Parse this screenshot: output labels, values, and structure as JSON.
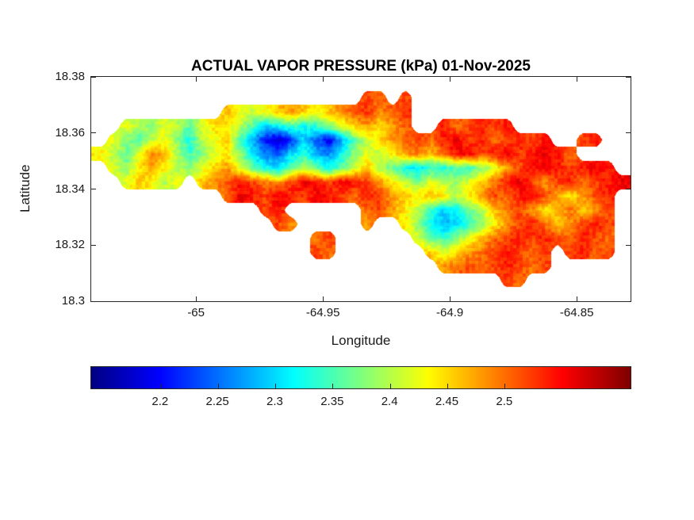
{
  "figure": {
    "background": "#ffffff"
  },
  "chart_data": {
    "type": "heatmap",
    "title": "ACTUAL VAPOR PRESSURE (kPa) 01-Nov-2025",
    "date_shown": "01-Nov-2025",
    "units": "kPa",
    "xlabel": "Longitude",
    "ylabel": "Latitude",
    "xlim": [
      -65.0413,
      -64.8288
    ],
    "ylim": [
      18.3,
      18.38
    ],
    "xticks": [
      -65,
      -64.95,
      -64.9,
      -64.85
    ],
    "xtick_labels": [
      "-65",
      "-64.95",
      "-64.9",
      "-64.85"
    ],
    "yticks": [
      18.38,
      18.36,
      18.34,
      18.32,
      18.3
    ],
    "ytick_labels": [
      "18.38",
      "18.36",
      "18.34",
      "18.32",
      "18.3"
    ],
    "grid_lines": false,
    "colormap": "jet",
    "colormap_stops": [
      [
        0,
        "#000083"
      ],
      [
        0.125,
        "#0000ff"
      ],
      [
        0.375,
        "#00ffff"
      ],
      [
        0.625,
        "#ffff00"
      ],
      [
        0.875,
        "#ff0000"
      ],
      [
        1,
        "#800000"
      ]
    ],
    "clim": [
      2.14,
      2.61
    ],
    "colorbar": {
      "orientation": "horizontal",
      "position": "south",
      "ticks": [
        2.2,
        2.25,
        2.3,
        2.35,
        2.4,
        2.45,
        2.5
      ],
      "tick_labels": [
        "2.2",
        "2.25",
        "2.3",
        "2.35",
        "2.4",
        "2.45",
        "2.5"
      ]
    },
    "grid": {
      "lon_start": -65.04,
      "lon_step": 0.005,
      "lat_start": 18.38,
      "lat_step": -0.005,
      "rows": 16,
      "cols": 42,
      "note": "estimated actual vapor pressure (kPa) on a coarse lon/lat grid; null = water / no data",
      "values": [
        [
          null,
          null,
          null,
          null,
          null,
          null,
          null,
          null,
          null,
          null,
          null,
          null,
          null,
          null,
          null,
          null,
          null,
          null,
          null,
          null,
          null,
          null,
          null,
          null,
          null,
          null,
          null,
          null,
          null,
          null,
          null,
          null,
          null,
          null,
          null,
          null,
          null,
          null,
          null,
          null,
          null,
          null
        ],
        [
          null,
          null,
          null,
          null,
          null,
          null,
          null,
          null,
          null,
          null,
          null,
          null,
          null,
          null,
          null,
          null,
          null,
          null,
          null,
          null,
          null,
          2.52,
          2.5,
          null,
          2.52,
          null,
          null,
          null,
          null,
          null,
          null,
          null,
          null,
          null,
          null,
          null,
          null,
          null,
          null,
          null,
          null,
          null
        ],
        [
          null,
          null,
          null,
          null,
          null,
          null,
          null,
          null,
          null,
          null,
          2.46,
          2.43,
          2.41,
          2.43,
          2.46,
          2.48,
          2.46,
          2.43,
          2.46,
          2.49,
          2.51,
          2.53,
          2.49,
          2.51,
          2.53,
          null,
          null,
          null,
          null,
          null,
          null,
          null,
          null,
          null,
          null,
          null,
          null,
          null,
          null,
          null,
          null,
          null
        ],
        [
          null,
          null,
          2.42,
          2.4,
          2.38,
          2.42,
          2.4,
          2.36,
          2.42,
          2.45,
          2.44,
          2.4,
          2.35,
          2.3,
          2.32,
          2.35,
          2.32,
          2.34,
          2.38,
          2.42,
          2.46,
          2.48,
          2.45,
          2.48,
          2.51,
          null,
          null,
          2.54,
          2.5,
          2.52,
          2.54,
          2.52,
          2.54,
          null,
          null,
          null,
          null,
          null,
          null,
          null,
          null,
          null
        ],
        [
          null,
          2.42,
          2.38,
          2.35,
          2.4,
          2.43,
          2.38,
          2.33,
          2.4,
          2.43,
          2.45,
          2.35,
          2.28,
          2.2,
          2.17,
          2.22,
          2.3,
          2.24,
          2.19,
          2.28,
          2.36,
          2.41,
          2.45,
          2.48,
          2.5,
          2.52,
          2.5,
          2.54,
          2.56,
          2.52,
          2.54,
          2.5,
          2.52,
          2.54,
          2.52,
          2.54,
          null,
          null,
          2.52,
          2.54,
          null,
          null
        ],
        [
          2.44,
          2.4,
          2.36,
          2.42,
          2.5,
          2.46,
          2.4,
          2.34,
          2.38,
          2.42,
          2.44,
          2.38,
          2.3,
          2.26,
          2.24,
          2.3,
          2.34,
          2.28,
          2.26,
          2.32,
          2.38,
          2.42,
          2.4,
          2.44,
          2.48,
          2.5,
          2.46,
          2.5,
          2.54,
          2.56,
          2.52,
          2.54,
          2.56,
          2.52,
          2.54,
          2.56,
          2.54,
          2.5,
          null,
          null,
          null,
          null
        ],
        [
          null,
          2.42,
          2.38,
          2.44,
          2.48,
          2.44,
          2.4,
          2.38,
          2.42,
          2.46,
          2.48,
          2.42,
          2.36,
          2.32,
          2.3,
          2.36,
          2.4,
          2.36,
          2.32,
          2.36,
          2.42,
          2.46,
          2.4,
          2.36,
          2.32,
          2.3,
          2.34,
          2.32,
          2.36,
          2.34,
          2.38,
          2.42,
          2.48,
          2.52,
          2.54,
          2.56,
          2.54,
          2.52,
          2.54,
          2.56,
          2.54,
          null
        ],
        [
          null,
          null,
          2.42,
          2.46,
          2.44,
          2.4,
          2.42,
          null,
          2.46,
          2.48,
          2.52,
          2.54,
          2.52,
          2.5,
          2.48,
          2.52,
          2.56,
          2.54,
          2.52,
          2.56,
          2.54,
          2.52,
          2.48,
          2.44,
          2.4,
          2.38,
          2.42,
          2.4,
          2.38,
          2.42,
          2.46,
          2.5,
          2.54,
          2.56,
          2.52,
          2.48,
          2.52,
          2.54,
          2.5,
          2.52,
          2.54,
          2.56
        ],
        [
          null,
          null,
          null,
          null,
          null,
          null,
          null,
          null,
          null,
          null,
          2.5,
          2.56,
          2.54,
          2.52,
          2.56,
          2.54,
          2.52,
          2.56,
          2.54,
          2.52,
          2.5,
          2.54,
          2.52,
          2.48,
          2.46,
          2.44,
          2.46,
          2.44,
          2.4,
          2.44,
          2.48,
          2.52,
          2.5,
          2.54,
          2.56,
          2.52,
          2.48,
          2.44,
          2.48,
          2.52,
          2.54,
          null
        ],
        [
          null,
          null,
          null,
          null,
          null,
          null,
          null,
          null,
          null,
          null,
          null,
          null,
          null,
          2.52,
          2.54,
          null,
          null,
          null,
          null,
          null,
          null,
          2.5,
          2.52,
          2.48,
          2.44,
          2.4,
          2.34,
          2.3,
          2.32,
          2.36,
          2.4,
          2.46,
          2.5,
          2.52,
          2.48,
          2.44,
          2.46,
          2.5,
          2.46,
          2.48,
          2.52,
          null
        ],
        [
          null,
          null,
          null,
          null,
          null,
          null,
          null,
          null,
          null,
          null,
          null,
          null,
          null,
          null,
          2.52,
          2.48,
          null,
          null,
          null,
          null,
          null,
          2.48,
          null,
          null,
          2.44,
          2.38,
          2.32,
          2.28,
          2.3,
          2.34,
          2.38,
          2.44,
          2.48,
          2.52,
          2.54,
          2.5,
          2.46,
          2.48,
          2.52,
          2.54,
          2.52,
          null
        ],
        [
          null,
          null,
          null,
          null,
          null,
          null,
          null,
          null,
          null,
          null,
          null,
          null,
          null,
          null,
          null,
          null,
          null,
          2.5,
          2.52,
          null,
          null,
          null,
          null,
          null,
          null,
          2.42,
          2.36,
          2.34,
          2.38,
          2.42,
          2.46,
          2.5,
          2.52,
          2.54,
          2.52,
          2.54,
          2.52,
          2.5,
          2.54,
          2.52,
          2.5,
          null
        ],
        [
          null,
          null,
          null,
          null,
          null,
          null,
          null,
          null,
          null,
          null,
          null,
          null,
          null,
          null,
          null,
          null,
          null,
          2.52,
          2.5,
          null,
          null,
          null,
          null,
          null,
          null,
          null,
          2.46,
          2.42,
          2.44,
          2.48,
          2.5,
          2.52,
          2.54,
          2.52,
          2.5,
          2.52,
          null,
          2.52,
          2.54,
          2.5,
          2.52,
          null
        ],
        [
          null,
          null,
          null,
          null,
          null,
          null,
          null,
          null,
          null,
          null,
          null,
          null,
          null,
          null,
          null,
          null,
          null,
          null,
          null,
          null,
          null,
          null,
          null,
          null,
          null,
          null,
          null,
          2.48,
          2.5,
          2.52,
          2.5,
          2.52,
          2.54,
          2.52,
          2.5,
          2.52,
          null,
          null,
          null,
          null,
          null,
          null
        ],
        [
          null,
          null,
          null,
          null,
          null,
          null,
          null,
          null,
          null,
          null,
          null,
          null,
          null,
          null,
          null,
          null,
          null,
          null,
          null,
          null,
          null,
          null,
          null,
          null,
          null,
          null,
          null,
          null,
          null,
          null,
          null,
          null,
          2.52,
          2.5,
          null,
          null,
          null,
          null,
          null,
          null,
          null,
          null
        ],
        [
          null,
          null,
          null,
          null,
          null,
          null,
          null,
          null,
          null,
          null,
          null,
          null,
          null,
          null,
          null,
          null,
          null,
          null,
          null,
          null,
          null,
          null,
          null,
          null,
          null,
          null,
          null,
          null,
          null,
          null,
          null,
          null,
          null,
          null,
          null,
          null,
          null,
          null,
          null,
          null,
          null,
          null
        ]
      ]
    }
  }
}
